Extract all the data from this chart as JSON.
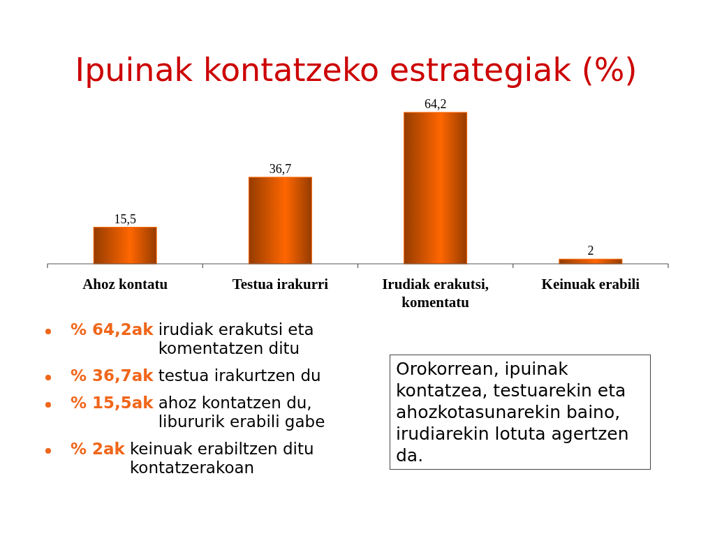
{
  "chart_data": {
    "type": "bar",
    "title": "Ipuinak kontatzeko estrategiak (%)",
    "categories": [
      "Ahoz kontatu",
      "Testua irakurri",
      "Irudiak erakutsi, komentatu",
      "Keinuak erabili"
    ],
    "values": [
      15.5,
      36.7,
      64.2,
      2
    ],
    "color": "#ff6600",
    "value_labels": [
      "15,5",
      "36,7",
      "64,2",
      "2"
    ],
    "annotations": [
      "% 64,2ak irudiak erakutsi eta komentatzen ditu",
      "% 36,7ak testua irakurtzen du",
      "% 15,5ak ahoz kontatzen du, libururik erabili gabe",
      "% 2ak keinuak erabiltzen ditu kontatzerakoan",
      "Orokorrean, ipuinak kontatzea, testuarekin eta ahozkotasunarekin baino, irudiarekin lotuta agertzen da."
    ]
  }
}
